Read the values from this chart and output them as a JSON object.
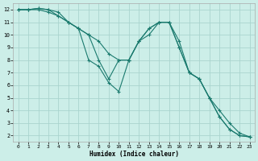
{
  "xlabel": "Humidex (Indice chaleur)",
  "background_color": "#cceee8",
  "grid_color": "#aad4ce",
  "line_color": "#1a7a6e",
  "xlim": [
    -0.5,
    23.5
  ],
  "ylim": [
    1.5,
    12.5
  ],
  "xticks": [
    0,
    1,
    2,
    3,
    4,
    5,
    6,
    7,
    8,
    9,
    10,
    11,
    12,
    13,
    14,
    15,
    16,
    17,
    18,
    19,
    20,
    21,
    22,
    23
  ],
  "yticks": [
    2,
    3,
    4,
    5,
    6,
    7,
    8,
    9,
    10,
    11,
    12
  ],
  "series": [
    {
      "x": [
        0,
        1,
        2,
        3,
        4,
        5,
        6,
        7,
        8,
        9,
        10,
        11,
        12,
        13,
        14,
        15,
        16,
        17,
        18,
        19,
        20,
        21,
        22,
        23
      ],
      "y": [
        12,
        12,
        12,
        11.8,
        11.5,
        11.0,
        10.5,
        10.0,
        9.5,
        8.5,
        8.0,
        8.0,
        9.5,
        10.0,
        11.0,
        11.0,
        9.0,
        7.0,
        6.5,
        5.0,
        4.0,
        3.0,
        2.2,
        1.9
      ]
    },
    {
      "x": [
        0,
        1,
        2,
        3,
        4,
        5,
        6,
        7,
        8,
        9,
        10,
        11,
        12,
        13,
        14,
        15,
        16,
        17,
        18,
        19,
        20,
        21,
        22,
        23
      ],
      "y": [
        12,
        12,
        12.1,
        12.0,
        11.8,
        11.0,
        10.5,
        8.0,
        7.5,
        6.2,
        5.5,
        8.0,
        9.5,
        10.5,
        11.0,
        11.0,
        9.0,
        7.0,
        6.5,
        5.0,
        3.5,
        2.5,
        2.0,
        1.9
      ]
    },
    {
      "x": [
        0,
        1,
        2,
        3,
        4,
        5,
        6,
        7,
        8,
        9,
        10,
        11,
        12,
        13,
        14,
        15,
        16,
        17,
        18,
        19,
        20,
        21,
        22,
        23
      ],
      "y": [
        12,
        12,
        12.1,
        12.0,
        11.5,
        11.0,
        10.5,
        10.0,
        8.0,
        6.5,
        8.0,
        8.0,
        9.5,
        10.5,
        11.0,
        11.0,
        9.5,
        7.0,
        6.5,
        5.0,
        3.5,
        2.5,
        2.0,
        1.9
      ]
    }
  ]
}
